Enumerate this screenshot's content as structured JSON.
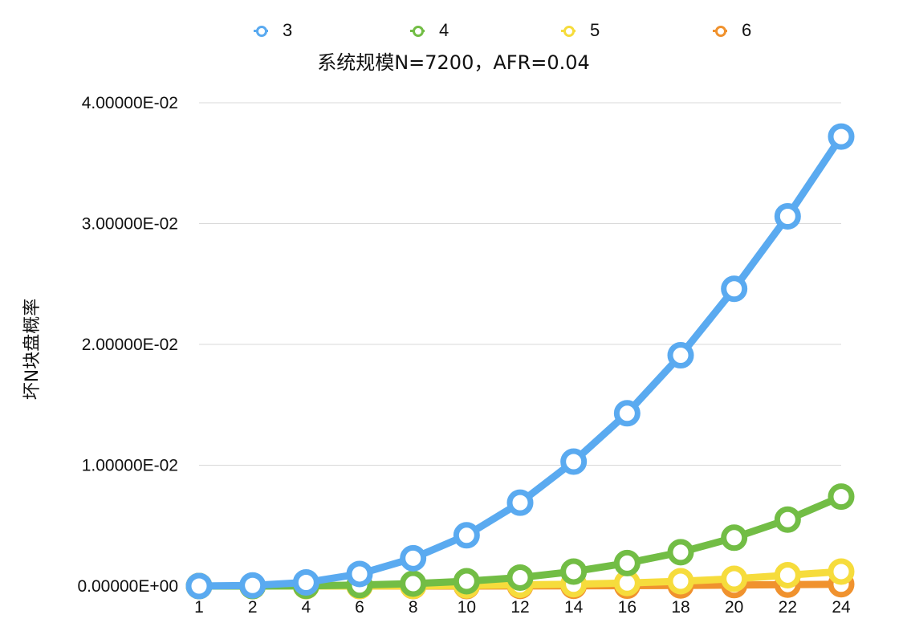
{
  "chart_data": {
    "type": "line",
    "title": "系统规模N=7200，AFR=0.04",
    "xlabel": "",
    "ylabel": "坏N块盘概率",
    "categories": [
      "1",
      "2",
      "4",
      "6",
      "8",
      "10",
      "12",
      "14",
      "16",
      "18",
      "20",
      "22",
      "24"
    ],
    "ylim": [
      0,
      0.04
    ],
    "yticks": [
      0,
      0.01,
      0.02,
      0.03,
      0.04
    ],
    "ytick_labels": [
      "0.00000E+00",
      "1.00000E-02",
      "2.00000E-02",
      "3.00000E-02",
      "4.00000E-02"
    ],
    "grid": true,
    "legend_position": "top",
    "series": [
      {
        "name": "3",
        "color": "#5aaaf0",
        "values": [
          0.0,
          5e-05,
          0.0003,
          0.001,
          0.0023,
          0.0042,
          0.0069,
          0.0103,
          0.0143,
          0.0191,
          0.0246,
          0.0306,
          0.0372
        ]
      },
      {
        "name": "4",
        "color": "#72bd45",
        "values": [
          0.0,
          0.0,
          2e-05,
          8e-05,
          0.0002,
          0.0004,
          0.0007,
          0.0012,
          0.0019,
          0.0028,
          0.004,
          0.0055,
          0.0074
        ]
      },
      {
        "name": "5",
        "color": "#f6dc3c",
        "values": [
          0.0,
          0.0,
          0.0,
          0.0,
          2e-05,
          5e-05,
          0.0001,
          0.00015,
          0.00025,
          0.0004,
          0.0006,
          0.0009,
          0.0012
        ]
      },
      {
        "name": "6",
        "color": "#f0922e",
        "values": [
          0.0,
          0.0,
          0.0,
          0.0,
          0.0,
          0.0,
          1e-05,
          2e-05,
          3e-05,
          5e-05,
          8e-05,
          0.00012,
          0.00015
        ]
      }
    ]
  }
}
